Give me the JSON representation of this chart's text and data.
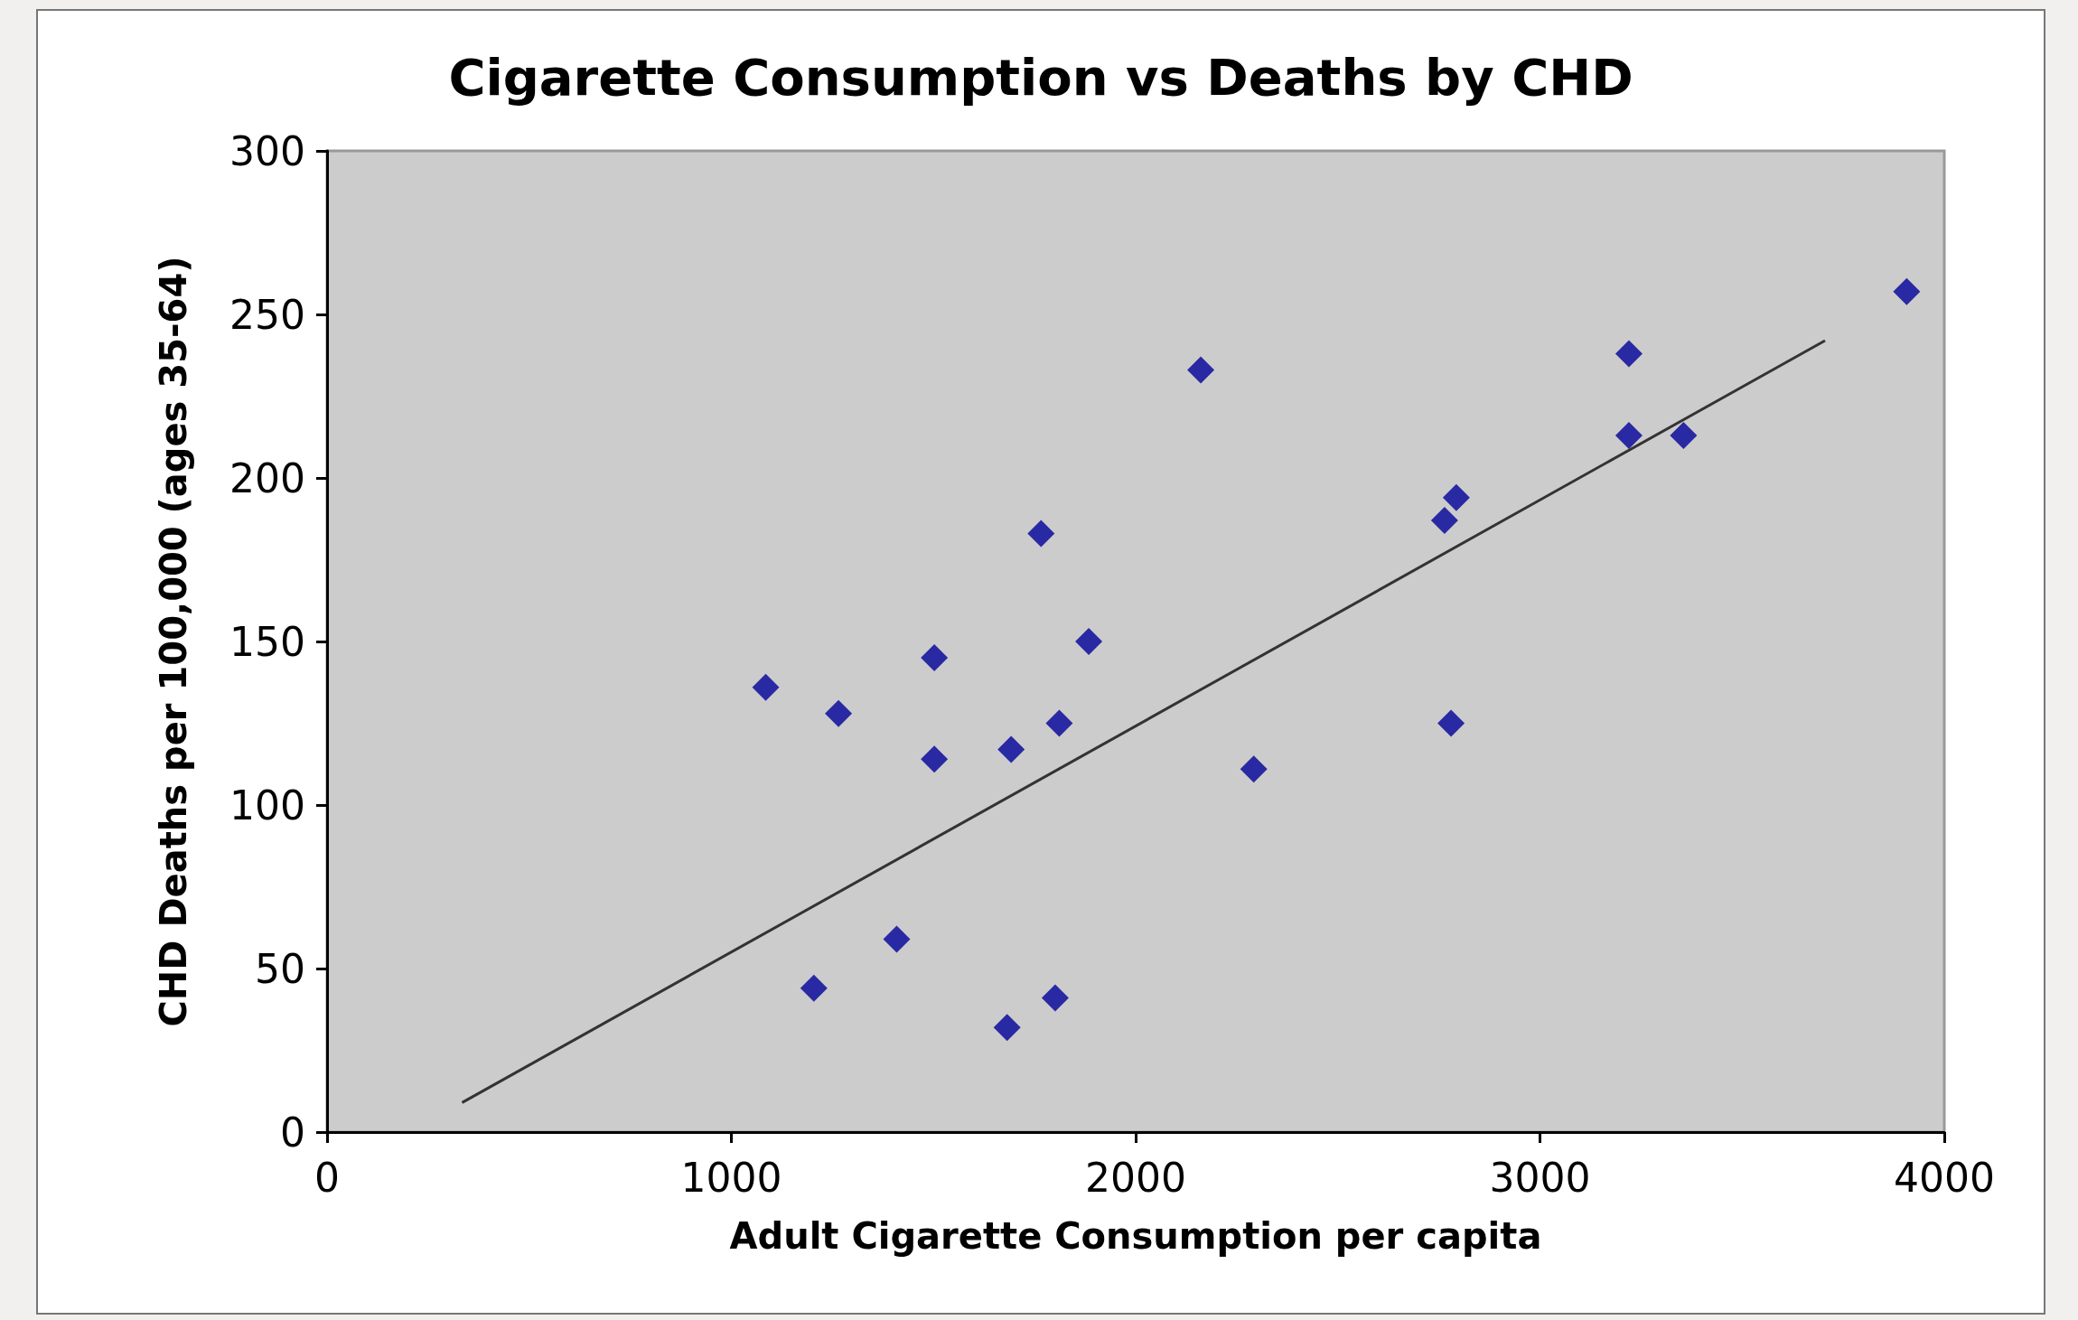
{
  "chart_data": {
    "type": "scatter",
    "title": "Cigarette Consumption vs Deaths by CHD",
    "xlabel": "Adult Cigarette Consumption per capita",
    "ylabel": "CHD Deaths per 100,000 (ages 35-64)",
    "marker": "diamond",
    "xlim": [
      0,
      4000
    ],
    "xticks": [
      0,
      1000,
      2000,
      3000,
      4000
    ],
    "ylim": [
      0,
      300
    ],
    "yticks": [
      0,
      50,
      100,
      150,
      200,
      250,
      300
    ],
    "series": [
      {
        "type": "scatter",
        "color": "#000099",
        "x": [
          1085,
          1265,
          1502,
          1502,
          1692,
          1766,
          1811,
          1884,
          1204,
          1409,
          1682,
          1801,
          2161,
          2292,
          2764,
          2793,
          2780,
          3220,
          3220,
          3355,
          3907
        ],
        "values": [
          136,
          128,
          145,
          114,
          117,
          183,
          125,
          150,
          44,
          59,
          32,
          41,
          233,
          111,
          187,
          194,
          125,
          238,
          213,
          213,
          257
        ]
      },
      {
        "type": "line",
        "color": "#333333",
        "marker": "none",
        "x": [
          334,
          3705
        ],
        "values": [
          9,
          242
        ]
      }
    ]
  }
}
